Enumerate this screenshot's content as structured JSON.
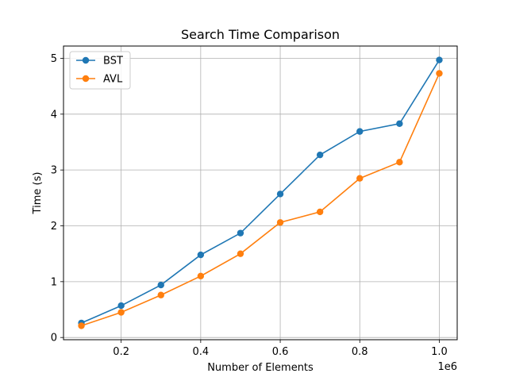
{
  "chart_data": {
    "type": "line",
    "title": "Search Time Comparison",
    "xlabel": "Number of Elements",
    "ylabel": "Time (s)",
    "x_offset_label": "1e6",
    "x": [
      0.1,
      0.2,
      0.3,
      0.4,
      0.5,
      0.6,
      0.7,
      0.8,
      0.9,
      1.0
    ],
    "xlim": [
      0.055,
      1.045
    ],
    "ylim": [
      -0.04,
      5.22
    ],
    "xticks": [
      0.2,
      0.4,
      0.6,
      0.8,
      1.0
    ],
    "xtick_labels": [
      "0.2",
      "0.4",
      "0.6",
      "0.8",
      "1.0"
    ],
    "yticks": [
      0,
      1,
      2,
      3,
      4,
      5
    ],
    "ytick_labels": [
      "0",
      "1",
      "2",
      "3",
      "4",
      "5"
    ],
    "grid": true,
    "legend_position": "top-left",
    "series": [
      {
        "name": "BST",
        "color": "#1f77b4",
        "values": [
          0.26,
          0.57,
          0.94,
          1.48,
          1.87,
          2.57,
          3.27,
          3.69,
          3.83,
          4.97
        ]
      },
      {
        "name": "AVL",
        "color": "#ff7f0e",
        "values": [
          0.21,
          0.45,
          0.76,
          1.1,
          1.5,
          2.06,
          2.25,
          2.85,
          3.14,
          4.73
        ]
      }
    ]
  }
}
